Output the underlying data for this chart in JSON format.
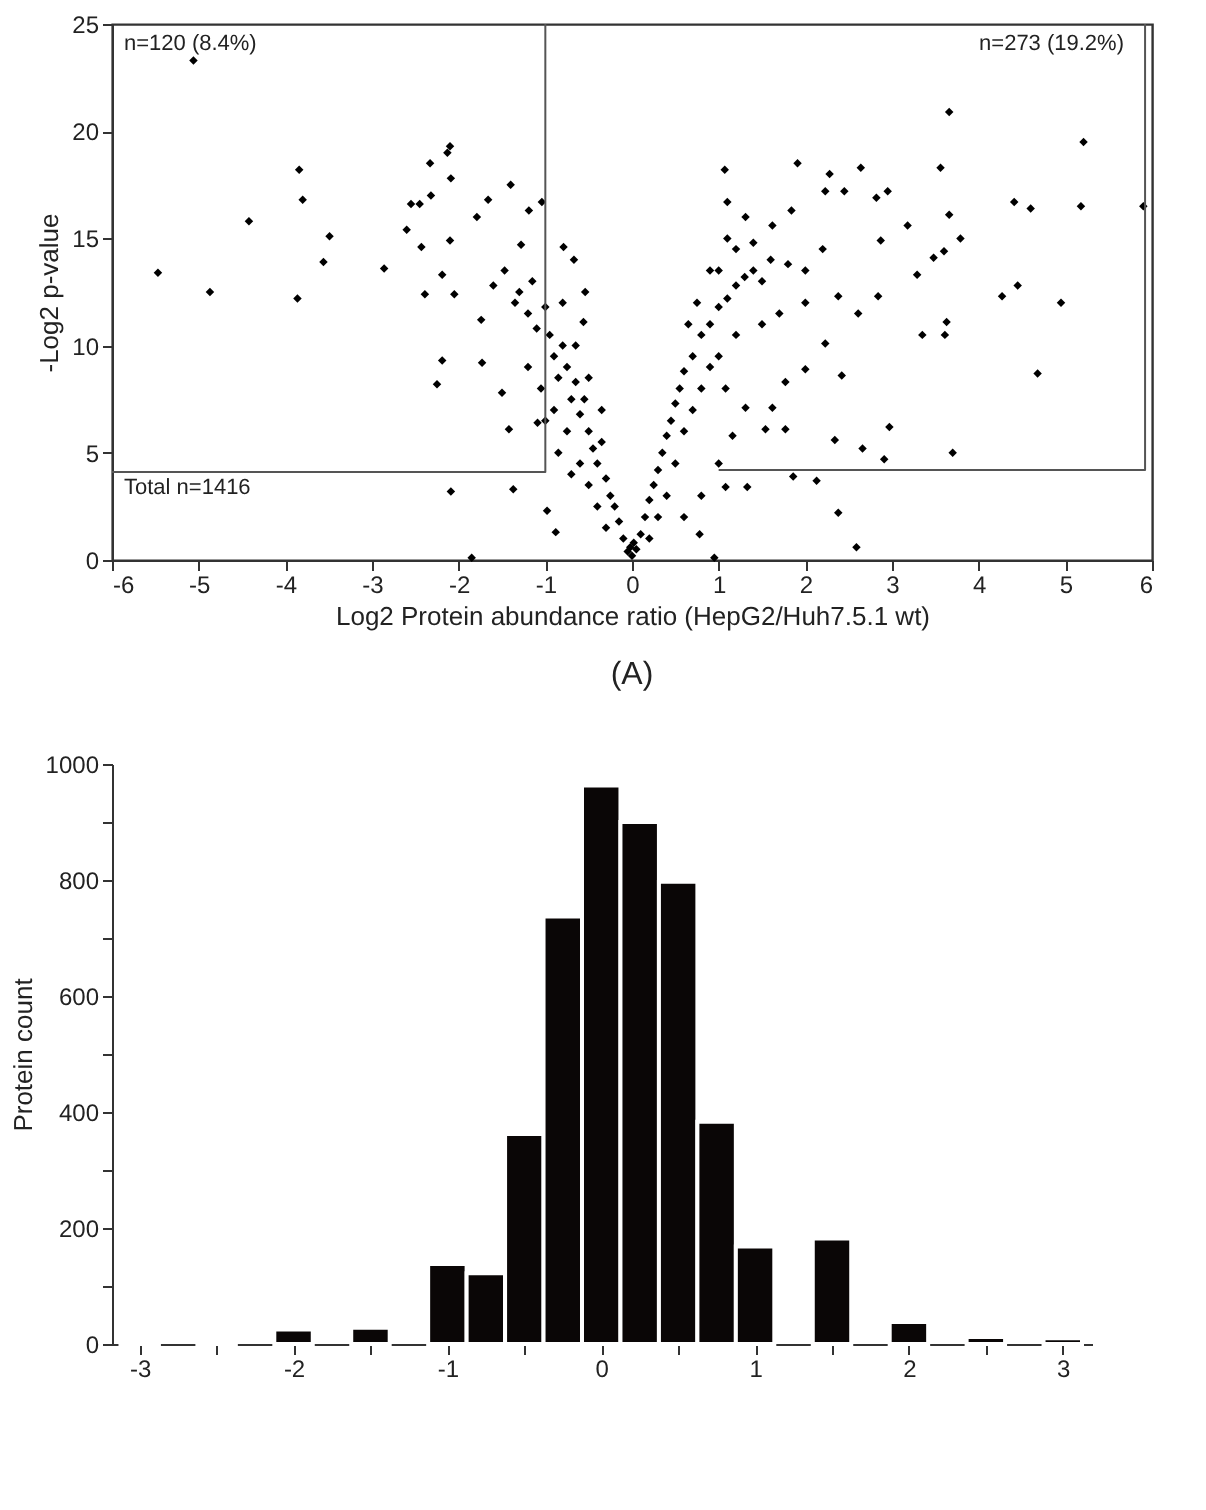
{
  "chart_data": [
    {
      "type": "scatter",
      "xlabel": "Log2 Protein abundance ratio (HepG2/Huh7.5.1 wt)",
      "ylabel": "-Log2 p-value",
      "xlim": [
        -6,
        6
      ],
      "ylim": [
        0,
        25
      ],
      "xticks": [
        -6,
        -5,
        -4,
        -3,
        -2,
        -1,
        0,
        1,
        2,
        3,
        4,
        5,
        6
      ],
      "yticks": [
        0,
        5,
        10,
        15,
        20,
        25
      ],
      "marker": "diamond",
      "grid": false,
      "annotations": [
        "n=120 (8.4%)",
        "n=273 (19.2%)",
        "Total n=1416",
        "(A)"
      ],
      "series": [
        {
          "color": "#000000",
          "x": [
            -5.06,
            -5.47,
            -4.87,
            -4.42,
            -3.84,
            -3.8,
            -3.86,
            -3.49,
            -3.56,
            -2.86,
            -2.6,
            -2.55,
            -2.45,
            -2.33,
            -2.32,
            -2.43,
            -2.39,
            -2.19,
            -2.1,
            -2.13,
            -2.09,
            -2.1,
            -2.05,
            -2.19,
            -2.25,
            -2.09,
            -1.85,
            -1.79,
            -1.66,
            -1.74,
            -1.73,
            -1.5,
            -1.42,
            -1.37,
            -1.4,
            -1.28,
            -1.47,
            -1.19,
            -1.04,
            -1.09,
            -0.98,
            -0.88,
            -0.79,
            -0.67,
            -0.54,
            -0.56,
            -1.3,
            -1.2,
            -1.1,
            -1.0,
            -0.95,
            -0.9,
            -0.85,
            -0.8,
            -0.75,
            -0.7,
            -0.65,
            -0.6,
            -0.55,
            -0.5,
            -0.45,
            -0.4,
            -0.35,
            -0.3,
            -0.25,
            -0.2,
            -0.15,
            -0.1,
            -0.05,
            -1.2,
            -1.05,
            -0.9,
            -0.75,
            -0.6,
            -0.5,
            -0.4,
            -0.3,
            -0.7,
            -0.85,
            -1.0,
            -0.5,
            -0.65,
            -0.8,
            -0.35,
            -1.6,
            -1.35,
            -1.15,
            3.66,
            5.21,
            1.91,
            1.07,
            2.64,
            3.56,
            2.28,
            2.23,
            2.45,
            2.95,
            2.82,
            1.1,
            4.41,
            4.6,
            5.18,
            5.9,
            3.66,
            3.79,
            3.18,
            2.87,
            1.84,
            1.62,
            1.31,
            3.48,
            3.29,
            3.6,
            4.27,
            4.45,
            4.95,
            4.68,
            3.35,
            3.61,
            3.63,
            2.97,
            2.34,
            2.66,
            2.91,
            3.7,
            1.86,
            2.13,
            2.38,
            2.59,
            0.95,
            0.78,
            1.33,
            1.08,
            2.61,
            2.38,
            2.84,
            2.0,
            2.23,
            2.42,
            2.0,
            1.77,
            1.62,
            1.54,
            1.77,
            1.31,
            1.16,
            1.08,
            0.05,
            0.1,
            0.15,
            0.2,
            0.25,
            0.3,
            0.35,
            0.4,
            0.45,
            0.5,
            0.55,
            0.6,
            0.7,
            0.8,
            0.9,
            1.0,
            1.1,
            1.2,
            1.3,
            1.4,
            1.5,
            1.6,
            1.8,
            2.0,
            2.2,
            1.0,
            1.2,
            1.4,
            0.6,
            0.7,
            0.8,
            0.9,
            1.0,
            1.2,
            1.5,
            1.7,
            0.5,
            0.4,
            0.3,
            0.2,
            0.65,
            0.75,
            0.9,
            1.1,
            1.0,
            0.8,
            0.6,
            0.0,
            0.02,
            -0.02
          ],
          "values": [
            23.3,
            13.4,
            12.5,
            15.8,
            18.2,
            16.8,
            12.2,
            15.1,
            13.9,
            13.6,
            15.4,
            16.6,
            16.6,
            18.5,
            17.0,
            14.6,
            12.4,
            13.3,
            19.3,
            19.0,
            17.8,
            14.9,
            12.4,
            9.3,
            8.2,
            3.2,
            0.1,
            16.0,
            16.8,
            11.2,
            9.2,
            7.8,
            6.1,
            3.3,
            17.5,
            14.7,
            13.5,
            16.3,
            16.7,
            6.4,
            2.3,
            1.3,
            14.6,
            14.0,
            12.5,
            11.1,
            12.5,
            11.5,
            10.8,
            11.8,
            10.5,
            9.5,
            8.5,
            10.0,
            9.0,
            7.5,
            8.3,
            6.8,
            7.5,
            6.0,
            5.2,
            4.5,
            5.5,
            3.8,
            3.0,
            2.5,
            1.8,
            1.0,
            0.4,
            9.0,
            8.0,
            7.0,
            6.0,
            4.5,
            3.5,
            2.5,
            1.5,
            4.0,
            5.0,
            6.5,
            8.5,
            10.0,
            12.0,
            7.0,
            12.8,
            12.0,
            13.0,
            20.9,
            19.5,
            18.5,
            18.2,
            18.3,
            18.3,
            18.0,
            17.2,
            17.2,
            17.2,
            16.9,
            16.7,
            16.7,
            16.4,
            16.5,
            16.5,
            16.1,
            15.0,
            15.6,
            14.9,
            16.3,
            15.6,
            16.0,
            14.1,
            13.3,
            14.4,
            12.3,
            12.8,
            12.0,
            8.7,
            10.5,
            10.5,
            11.1,
            6.2,
            5.6,
            5.2,
            4.7,
            5.0,
            3.9,
            3.7,
            2.2,
            0.6,
            0.1,
            1.2,
            3.4,
            3.4,
            11.5,
            12.3,
            12.3,
            12.0,
            10.1,
            8.6,
            8.9,
            8.3,
            7.1,
            6.1,
            6.1,
            7.1,
            5.8,
            8.0,
            0.5,
            1.2,
            2.0,
            2.8,
            3.5,
            4.2,
            5.0,
            5.8,
            6.5,
            7.3,
            8.0,
            8.8,
            9.5,
            10.5,
            11.0,
            11.8,
            12.2,
            12.8,
            13.2,
            13.5,
            13.0,
            14.0,
            13.8,
            13.5,
            14.5,
            13.5,
            14.5,
            14.8,
            6.0,
            7.0,
            8.0,
            9.0,
            9.5,
            10.5,
            11.0,
            11.5,
            4.5,
            3.0,
            2.0,
            1.0,
            11.0,
            12.0,
            13.5,
            15.0,
            4.5,
            3.0,
            2.0,
            0.2,
            0.8,
            0.6
          ]
        },
        {
          "type": "line",
          "marker": "none",
          "line_style": "solid",
          "color": "#555555",
          "x": [
            -6,
            -1,
            -1
          ],
          "values": [
            4.1,
            4.1,
            25
          ]
        },
        {
          "type": "line",
          "marker": "none",
          "line_style": "solid",
          "color": "#555555",
          "x": [
            1,
            5.92,
            5.92
          ],
          "values": [
            4.2,
            4.2,
            25
          ]
        }
      ]
    },
    {
      "type": "histogram",
      "ylabel": "Protein count",
      "color": "#0a0606",
      "grid": false,
      "xlim": [
        -3.18,
        3.19
      ],
      "ylim": [
        0,
        1000
      ],
      "bins": [
        -3.125,
        -2.875,
        -2.625,
        -2.375,
        -2.125,
        -1.875,
        -1.625,
        -1.375,
        -1.125,
        -0.875,
        -0.625,
        -0.375,
        -0.125,
        0.125,
        0.375,
        0.625,
        0.875,
        1.125,
        1.375,
        1.625,
        1.875,
        2.125,
        2.375,
        2.625,
        2.875,
        3.125
      ],
      "values": [
        3,
        0,
        2,
        0,
        25,
        0,
        28,
        0,
        138,
        122,
        362,
        737,
        963,
        900,
        797,
        383,
        168,
        0,
        182,
        0,
        38,
        0,
        12,
        0,
        10
      ],
      "xticks": [
        -3,
        {
          "value": -2.5,
          "label": null
        },
        -2,
        {
          "value": -1.5,
          "label": null
        },
        -1,
        {
          "value": -0.5,
          "label": null
        },
        0,
        {
          "value": 0.5,
          "label": null
        },
        1,
        {
          "value": 1.5,
          "label": null
        },
        2,
        {
          "value": 2.5,
          "label": null
        },
        3
      ],
      "yticks": [
        0,
        {
          "value": 100,
          "label": null
        },
        200,
        {
          "value": 300,
          "label": null
        },
        400,
        {
          "value": 500,
          "label": null
        },
        600,
        {
          "value": 700,
          "label": null
        },
        800,
        {
          "value": 900,
          "label": null
        },
        1000
      ]
    }
  ]
}
